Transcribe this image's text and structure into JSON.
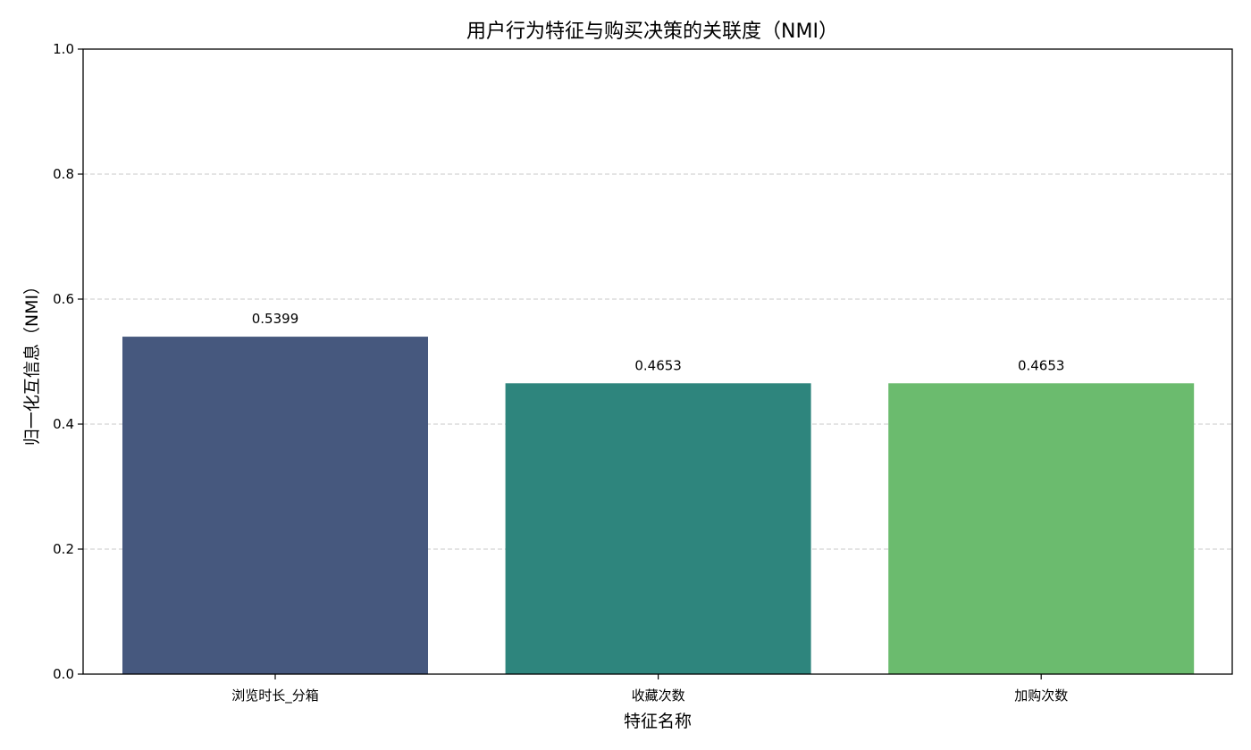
{
  "chart_data": {
    "type": "bar",
    "title": "用户行为特征与购买决策的关联度（NMI）",
    "xlabel": "特征名称",
    "ylabel": "归一化互信息（NMI）",
    "categories": [
      "浏览时长_分箱",
      "收藏次数",
      "加购次数"
    ],
    "values": [
      0.5399,
      0.4653,
      0.4653
    ],
    "value_labels": [
      "0.5399",
      "0.4653",
      "0.4653"
    ],
    "colors": [
      "#46587e",
      "#2e857d",
      "#6bbb6e"
    ],
    "ylim": [
      0,
      1.0
    ],
    "yticks": [
      0.0,
      0.2,
      0.4,
      0.6,
      0.8,
      1.0
    ],
    "ytick_labels": [
      "0.0",
      "0.2",
      "0.4",
      "0.6",
      "0.8",
      "1.0"
    ],
    "grid": "y-dashed",
    "legend": "none"
  }
}
